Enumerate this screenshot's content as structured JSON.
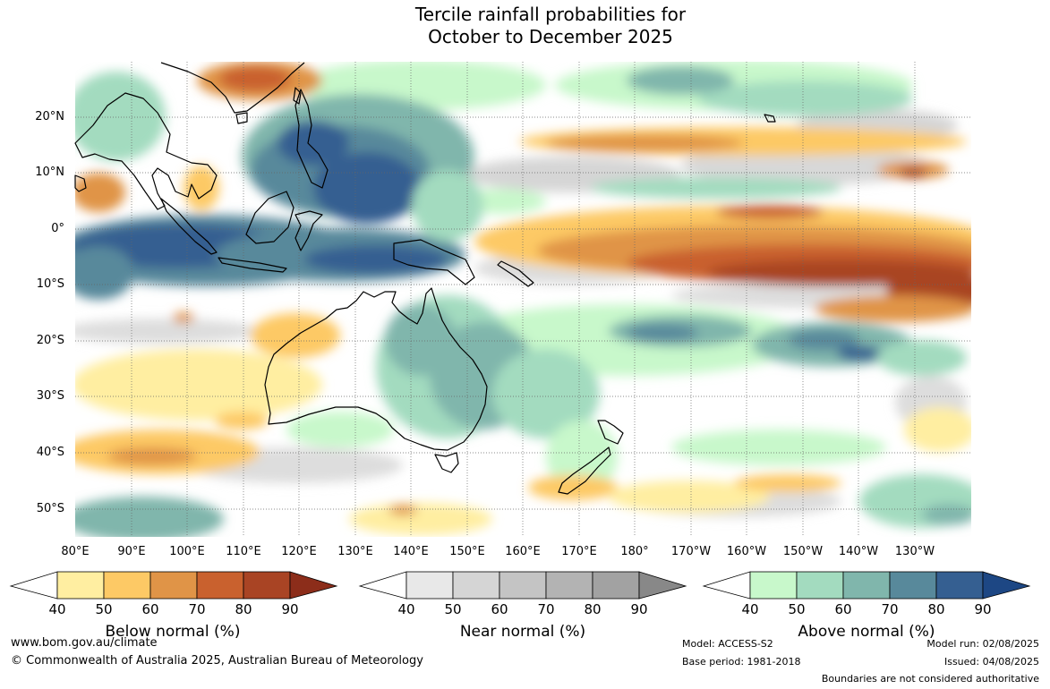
{
  "title": {
    "line1": "Tercile rainfall probabilities for",
    "line2": "October to December 2025"
  },
  "map": {
    "region": "Indo-Pacific, 80°E to 120°W, 30°N to 55°S",
    "lat_labels": [
      "20°N",
      "10°N",
      "0°",
      "10°S",
      "20°S",
      "30°S",
      "40°S",
      "50°S"
    ],
    "lon_labels": [
      "80°E",
      "90°E",
      "100°E",
      "110°E",
      "120°E",
      "130°E",
      "140°E",
      "150°E",
      "160°E",
      "170°E",
      "180°",
      "170°W",
      "160°W",
      "150°W",
      "140°W",
      "130°W"
    ],
    "gridlines": "dotted",
    "pattern_summary": [
      {
        "area": "Maritime Continent / Indonesia",
        "category": "Above normal",
        "prob": "70-90"
      },
      {
        "area": "Central equatorial Pacific",
        "category": "Below normal",
        "prob": "70-90"
      },
      {
        "area": "Eastern Australia",
        "category": "Above normal",
        "prob": "50-70"
      },
      {
        "area": "South-east Indian Ocean",
        "category": "Below normal",
        "prob": "40-60"
      }
    ]
  },
  "colorbars": [
    {
      "id": "below",
      "label": "Below normal (%)",
      "ticks": [
        "40",
        "50",
        "60",
        "70",
        "80",
        "90"
      ],
      "colors": [
        "#ffffff",
        "#ffeea1",
        "#fdc965",
        "#e09447",
        "#c9612e",
        "#a94424",
        "#8c2d1a"
      ]
    },
    {
      "id": "near",
      "label": "Near normal (%)",
      "ticks": [
        "40",
        "50",
        "60",
        "70",
        "80",
        "90"
      ],
      "colors": [
        "#ffffff",
        "#e8e8e8",
        "#d5d5d5",
        "#c4c4c4",
        "#b3b3b3",
        "#a2a2a2",
        "#888888"
      ]
    },
    {
      "id": "above",
      "label": "Above normal (%)",
      "ticks": [
        "40",
        "50",
        "60",
        "70",
        "80",
        "90"
      ],
      "colors": [
        "#ffffff",
        "#c8f8cb",
        "#a3dbbf",
        "#80b6ac",
        "#58899b",
        "#355f91",
        "#1d4784"
      ]
    }
  ],
  "footer": {
    "url": "www.bom.gov.au/climate",
    "copyright": "© Commonwealth of Australia 2025, Australian Bureau of Meteorology",
    "model": "Model: ACCESS-S2",
    "base_period": "Base period: 1981-2018",
    "model_run": "Model run: 02/08/2025",
    "issued": "Issued: 04/08/2025",
    "disclaimer": "Boundaries are not considered authoritative"
  }
}
